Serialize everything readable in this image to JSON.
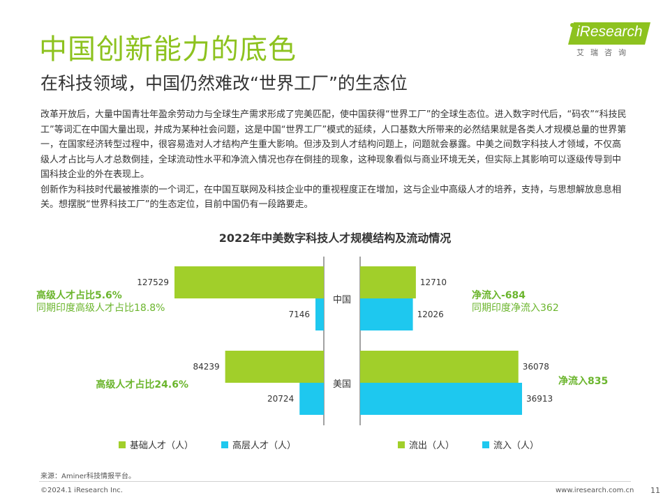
{
  "header": {
    "title": "中国创新能力的底色",
    "subtitle": "在科技领域，中国仍然难改“世界工厂”的生态位"
  },
  "logo": {
    "text": "iResearch",
    "sub": "艾瑞咨询"
  },
  "body": {
    "paragraphs": [
      "改革开放后，大量中国青壮年盈余劳动力与全球生产需求形成了完美匹配，使中国获得“世界工厂”的全球生态位。进入数字时代后，“码农”“科技民工”等词汇在中国大量出现，并成为某种社会问题，这是中国“世界工厂”模式的延续，人口基数大所带来的必然结果就是各类人才规模总量的世界第一，在国家经济转型过程中，很容易造对人才结构产生重大影响。但涉及到人才结构问题上，问题就会暴露。中美之间数字科技人才领域，不仅高级人才占比与人才总数倒挂，全球流动性水平和净流入情况也存在倒挂的现象，这种现象看似与商业环境无关，但实际上其影响可以逐级传导到中国科技企业的外在表现上。",
      "创新作为科技时代最被推崇的一个词汇，在中国互联网及科技企业中的重视程度正在增加，这与企业中高级人才的培养，支持，与思想解放息息相关。想摆脱“世界科技工厂”的生态定位，目前中国仍有一段路要走。"
    ]
  },
  "colors": {
    "green": "#a1cf2a",
    "cyan": "#1ec8ef",
    "annotation_green": "#6bb52d",
    "title_green": "#8dc21f"
  },
  "chart_data": {
    "type": "bar",
    "title": "2022年中美数字科技人才规模结构及流动情况",
    "categories": [
      "中国",
      "美国"
    ],
    "left_panel": {
      "series": [
        {
          "name": "基础人才（人）",
          "color": "#a1cf2a",
          "values": [
            127529,
            84239
          ]
        },
        {
          "name": "高层人才（人）",
          "color": "#1ec8ef",
          "values": [
            7146,
            20724
          ]
        }
      ],
      "annotations": [
        {
          "lines": [
            "高级人才占比5.6%",
            "同期印度高级人才占比18.8%"
          ],
          "category": "中国"
        },
        {
          "lines": [
            "高级人才占比24.6%"
          ],
          "category": "美国"
        }
      ]
    },
    "right_panel": {
      "series": [
        {
          "name": "流出（人）",
          "color": "#a1cf2a",
          "values": [
            12710,
            36078
          ]
        },
        {
          "name": "流入（人）",
          "color": "#1ec8ef",
          "values": [
            12026,
            36913
          ]
        }
      ],
      "annotations": [
        {
          "lines": [
            "净流入-684",
            "同期印度净流入362"
          ],
          "category": "中国"
        },
        {
          "lines": [
            "净流入835"
          ],
          "category": "美国"
        }
      ]
    },
    "legend_left": [
      "基础人才（人）",
      "高层人才（人）"
    ],
    "legend_right": [
      "流出（人）",
      "流入（人）"
    ]
  },
  "footer": {
    "source": "来源：Aminer科技情报平台。",
    "copyright": "©2024.1 iResearch Inc.",
    "site": "www.iresearch.com.cn",
    "page": "11"
  }
}
